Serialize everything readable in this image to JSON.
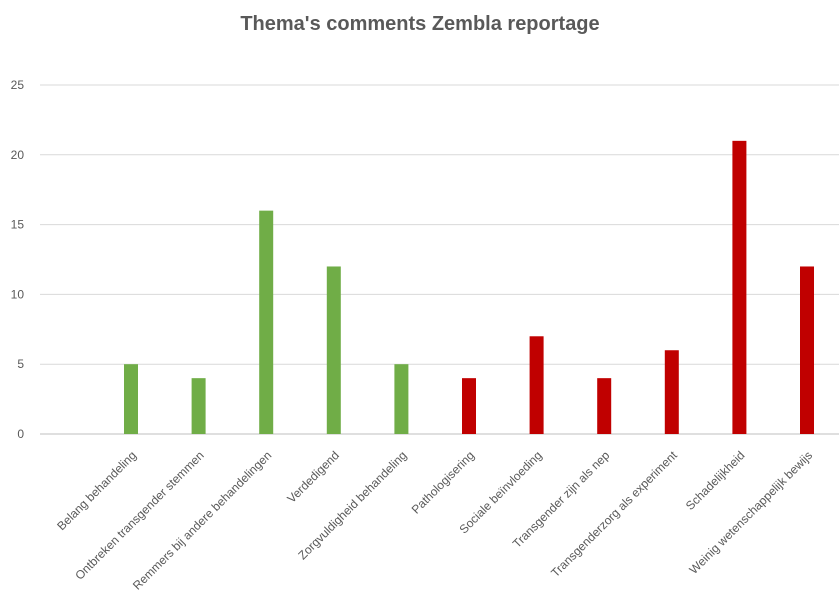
{
  "chart_data": {
    "type": "bar",
    "title": "Thema's comments Zembla reportage",
    "xlabel": "",
    "ylabel": "",
    "ylim": [
      0,
      25
    ],
    "yticks": [
      0,
      5,
      10,
      15,
      20,
      25
    ],
    "grid": true,
    "legend": "none",
    "categories": [
      "Belang behandeling",
      "Ontbreken transgender stemmen",
      "Remmers bij andere behandelingen",
      "Verdedigend",
      "Zorgvuldigheid behandeling",
      "Pathologisering",
      "Sociale beïnvloeding",
      "Transgender zijn als nep",
      "Transgenderzorg als experiment",
      "Schadelijkheid",
      "Weinig wetenschappelijk bewijs"
    ],
    "values": [
      5,
      4,
      16,
      12,
      5,
      4,
      7,
      4,
      6,
      21,
      12
    ],
    "bar_colors": [
      "#70ad47",
      "#70ad47",
      "#70ad47",
      "#70ad47",
      "#70ad47",
      "#c00000",
      "#c00000",
      "#c00000",
      "#c00000",
      "#c00000",
      "#c00000"
    ]
  }
}
